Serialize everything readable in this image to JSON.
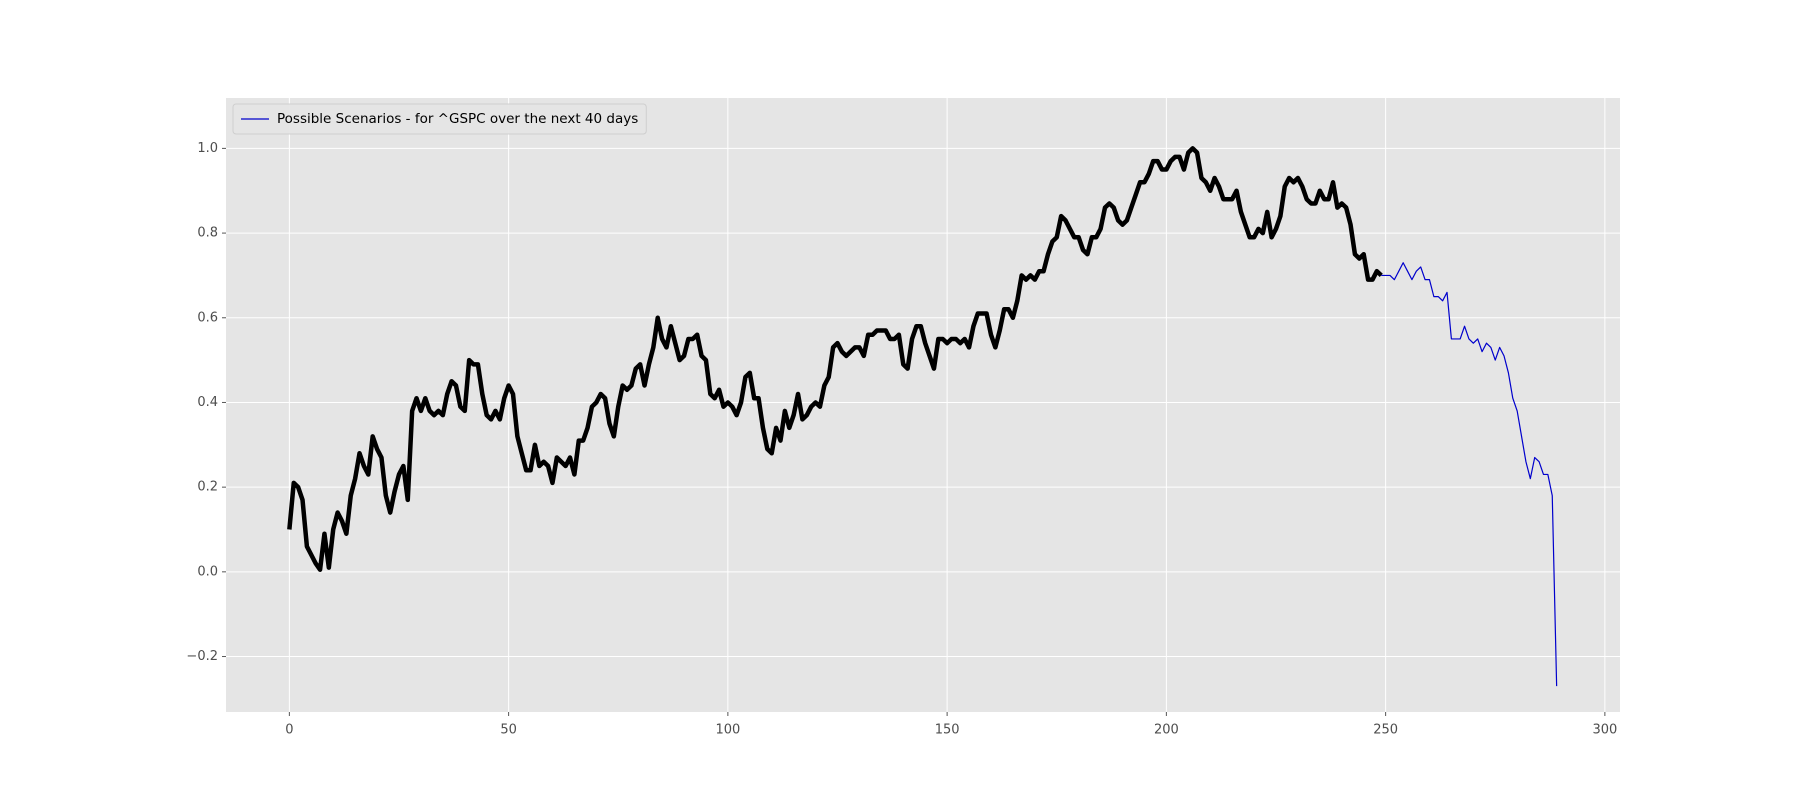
{
  "chart_data": {
    "type": "line",
    "xlim": [
      -14.45,
      303.45
    ],
    "ylim": [
      -0.331,
      1.119
    ],
    "xticks": [
      0,
      50,
      100,
      150,
      200,
      250,
      300
    ],
    "yticks": [
      {
        "value": -0.2,
        "label": "−0.2"
      },
      {
        "value": 0,
        "label": "0.0"
      },
      0.2,
      0.4,
      0.6,
      0.8,
      {
        "value": 1,
        "label": "1.0"
      }
    ],
    "grid": true,
    "legend": "upper left",
    "series": [
      {
        "color": "#000000",
        "linewidth": 4.5,
        "x": [
          0,
          1,
          2,
          3,
          4,
          5,
          6,
          7,
          8,
          9,
          10,
          11,
          12,
          13,
          14,
          15,
          16,
          17,
          18,
          19,
          20,
          21,
          22,
          23,
          24,
          25,
          26,
          27,
          28,
          29,
          30,
          31,
          32,
          33,
          34,
          35,
          36,
          37,
          38,
          39,
          40,
          41,
          42,
          43,
          44,
          45,
          46,
          47,
          48,
          49,
          50,
          51,
          52,
          53,
          54,
          55,
          56,
          57,
          58,
          59,
          60,
          61,
          62,
          63,
          64,
          65,
          66,
          67,
          68,
          69,
          70,
          71,
          72,
          73,
          74,
          75,
          76,
          77,
          78,
          79,
          80,
          81,
          82,
          83,
          84,
          85,
          86,
          87,
          88,
          89,
          90,
          91,
          92,
          93,
          94,
          95,
          96,
          97,
          98,
          99,
          100,
          101,
          102,
          103,
          104,
          105,
          106,
          107,
          108,
          109,
          110,
          111,
          112,
          113,
          114,
          115,
          116,
          117,
          118,
          119,
          120,
          121,
          122,
          123,
          124,
          125,
          126,
          127,
          128,
          129,
          130,
          131,
          132,
          133,
          134,
          135,
          136,
          137,
          138,
          139,
          140,
          141,
          142,
          143,
          144,
          145,
          146,
          147,
          148,
          149,
          150,
          151,
          152,
          153,
          154,
          155,
          156,
          157,
          158,
          159,
          160,
          161,
          162,
          163,
          164,
          165,
          166,
          167,
          168,
          169,
          170,
          171,
          172,
          173,
          174,
          175,
          176,
          177,
          178,
          179,
          180,
          181,
          182,
          183,
          184,
          185,
          186,
          187,
          188,
          189,
          190,
          191,
          192,
          193,
          194,
          195,
          196,
          197,
          198,
          199,
          200,
          201,
          202,
          203,
          204,
          205,
          206,
          207,
          208,
          209,
          210,
          211,
          212,
          213,
          214,
          215,
          216,
          217,
          218,
          219,
          220,
          221,
          222,
          223,
          224,
          225,
          226,
          227,
          228,
          229,
          230,
          231,
          232,
          233,
          234,
          235,
          236,
          237,
          238,
          239,
          240,
          241,
          242,
          243,
          244,
          245,
          246,
          247,
          248,
          249
        ],
        "values": [
          0.1,
          0.21,
          0.2,
          0.17,
          0.06,
          0.04,
          0.02,
          0.005,
          0.09,
          0.01,
          0.1,
          0.14,
          0.12,
          0.09,
          0.18,
          0.22,
          0.28,
          0.25,
          0.23,
          0.32,
          0.29,
          0.27,
          0.18,
          0.14,
          0.19,
          0.23,
          0.25,
          0.17,
          0.38,
          0.41,
          0.38,
          0.41,
          0.38,
          0.37,
          0.38,
          0.37,
          0.42,
          0.45,
          0.44,
          0.39,
          0.38,
          0.5,
          0.49,
          0.49,
          0.42,
          0.37,
          0.36,
          0.38,
          0.36,
          0.41,
          0.44,
          0.42,
          0.32,
          0.28,
          0.24,
          0.24,
          0.3,
          0.25,
          0.26,
          0.25,
          0.21,
          0.27,
          0.26,
          0.25,
          0.27,
          0.23,
          0.31,
          0.31,
          0.34,
          0.39,
          0.4,
          0.42,
          0.41,
          0.35,
          0.32,
          0.39,
          0.44,
          0.43,
          0.44,
          0.48,
          0.49,
          0.44,
          0.49,
          0.53,
          0.6,
          0.55,
          0.53,
          0.58,
          0.54,
          0.5,
          0.51,
          0.55,
          0.55,
          0.56,
          0.51,
          0.5,
          0.42,
          0.41,
          0.43,
          0.39,
          0.4,
          0.39,
          0.37,
          0.4,
          0.46,
          0.47,
          0.41,
          0.41,
          0.34,
          0.29,
          0.28,
          0.34,
          0.31,
          0.38,
          0.34,
          0.37,
          0.42,
          0.36,
          0.37,
          0.39,
          0.4,
          0.39,
          0.44,
          0.46,
          0.53,
          0.54,
          0.52,
          0.51,
          0.52,
          0.53,
          0.53,
          0.51,
          0.56,
          0.56,
          0.57,
          0.57,
          0.57,
          0.55,
          0.55,
          0.56,
          0.49,
          0.48,
          0.55,
          0.58,
          0.58,
          0.54,
          0.51,
          0.48,
          0.55,
          0.55,
          0.54,
          0.55,
          0.55,
          0.54,
          0.55,
          0.53,
          0.58,
          0.61,
          0.61,
          0.61,
          0.56,
          0.53,
          0.57,
          0.62,
          0.62,
          0.6,
          0.64,
          0.7,
          0.69,
          0.7,
          0.69,
          0.71,
          0.71,
          0.75,
          0.78,
          0.79,
          0.84,
          0.83,
          0.81,
          0.79,
          0.79,
          0.76,
          0.75,
          0.79,
          0.79,
          0.81,
          0.86,
          0.87,
          0.86,
          0.83,
          0.82,
          0.83,
          0.86,
          0.89,
          0.92,
          0.92,
          0.94,
          0.97,
          0.97,
          0.95,
          0.95,
          0.97,
          0.98,
          0.98,
          0.95,
          0.99,
          1.0,
          0.99,
          0.93,
          0.92,
          0.9,
          0.93,
          0.91,
          0.88,
          0.88,
          0.88,
          0.9,
          0.85,
          0.82,
          0.79,
          0.79,
          0.81,
          0.8,
          0.85,
          0.79,
          0.81,
          0.84,
          0.91,
          0.93,
          0.92,
          0.93,
          0.91,
          0.88,
          0.87,
          0.87,
          0.9,
          0.88,
          0.88,
          0.92,
          0.86,
          0.87,
          0.86,
          0.82,
          0.75,
          0.74,
          0.75,
          0.69,
          0.69,
          0.71,
          0.7
        ]
      },
      {
        "name": "Possible Scenarios - for ^GSPC over the next 40 days",
        "color": "#0000cc",
        "linewidth": 1.2,
        "x": [
          249,
          250,
          251,
          252,
          253,
          254,
          255,
          256,
          257,
          258,
          259,
          260,
          261,
          262,
          263,
          264,
          265,
          266,
          267,
          268,
          269,
          270,
          271,
          272,
          273,
          274,
          275,
          276,
          277,
          278,
          279,
          280,
          281,
          282,
          283,
          284,
          285,
          286,
          287,
          288,
          289
        ],
        "values": [
          0.7,
          0.7,
          0.7,
          0.69,
          0.71,
          0.73,
          0.71,
          0.69,
          0.71,
          0.72,
          0.69,
          0.69,
          0.65,
          0.65,
          0.64,
          0.66,
          0.55,
          0.55,
          0.55,
          0.58,
          0.55,
          0.54,
          0.55,
          0.52,
          0.54,
          0.53,
          0.5,
          0.53,
          0.51,
          0.47,
          0.41,
          0.38,
          0.32,
          0.26,
          0.22,
          0.27,
          0.26,
          0.23,
          0.23,
          0.18,
          -0.27
        ]
      }
    ]
  }
}
